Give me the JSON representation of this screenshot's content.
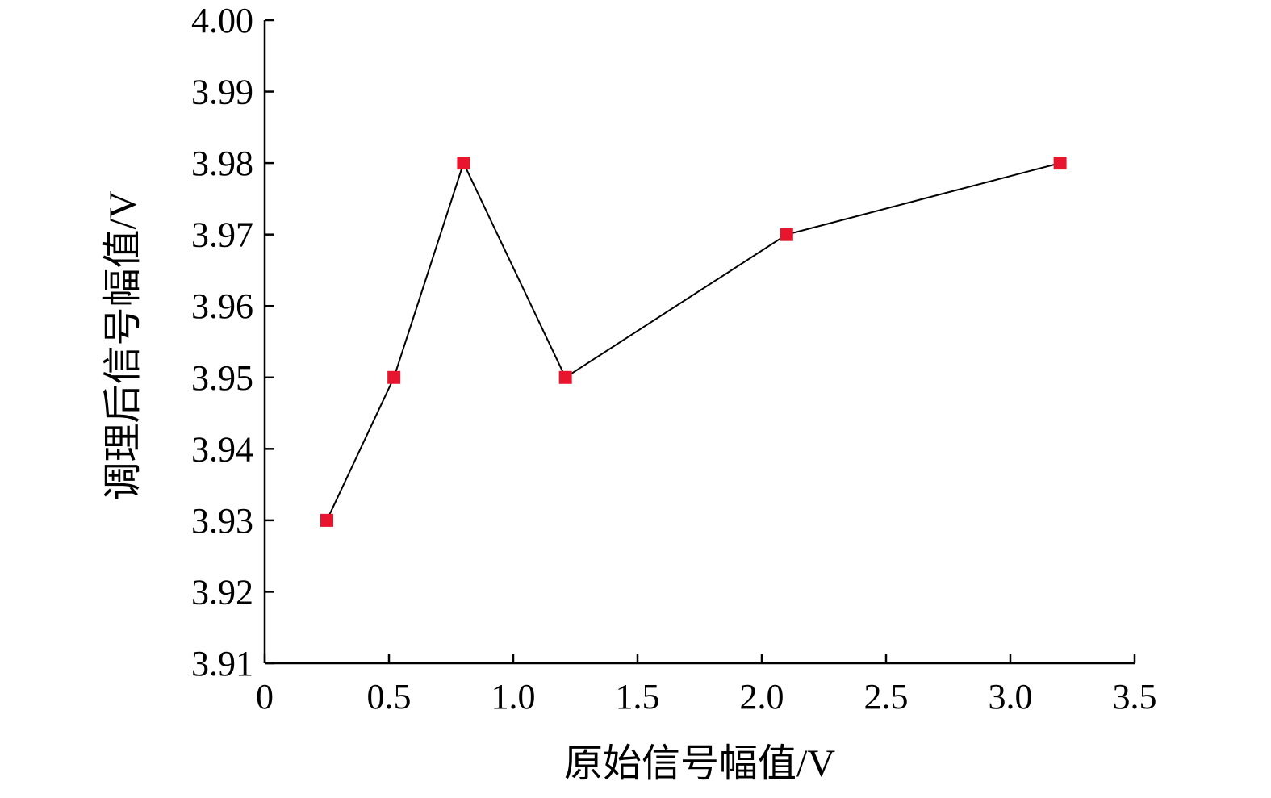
{
  "chart_data": {
    "type": "line",
    "title": "",
    "xlabel": "原始信号幅值/V",
    "ylabel": "调理后信号幅值/V",
    "xlim": [
      0,
      3.5
    ],
    "ylim": [
      3.91,
      4.0
    ],
    "x_ticks": [
      "0",
      "0.5",
      "1.0",
      "1.5",
      "2.0",
      "2.5",
      "3.0",
      "3.5"
    ],
    "y_ticks": [
      "3.91",
      "3.92",
      "3.93",
      "3.94",
      "3.95",
      "3.96",
      "3.97",
      "3.98",
      "3.99",
      "4.00"
    ],
    "grid": false,
    "legend": "none",
    "series": [
      {
        "x": [
          0.25,
          0.52,
          0.8,
          1.21,
          2.1,
          3.2
        ],
        "y": [
          3.93,
          3.95,
          3.98,
          3.95,
          3.97,
          3.98
        ],
        "marker": "square",
        "marker_color": "#e8152f",
        "line_color": "#000000"
      }
    ]
  }
}
